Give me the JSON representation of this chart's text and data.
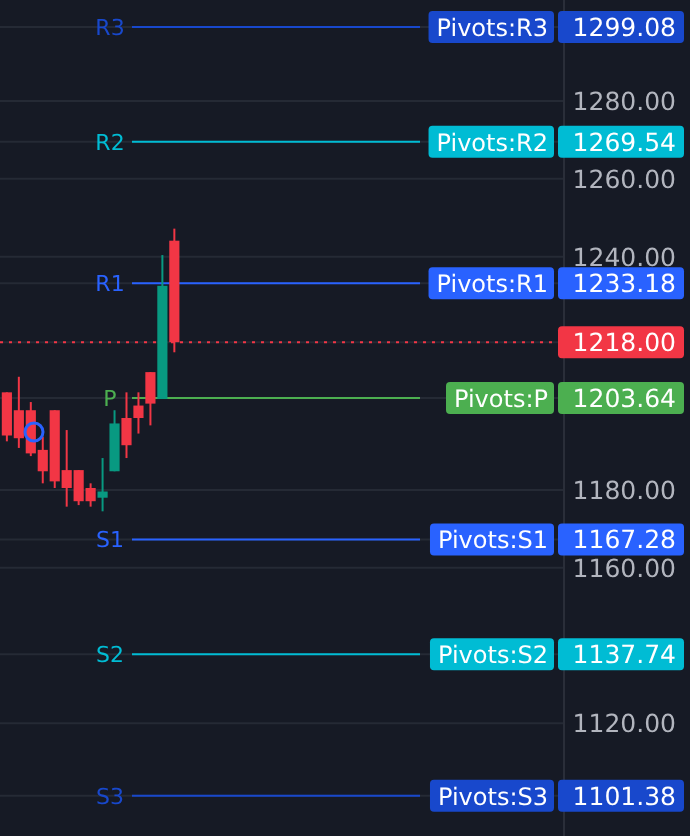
{
  "chart_data": {
    "type": "candlestick",
    "categories": [
      null,
      null,
      null,
      null,
      null,
      null,
      null,
      null,
      null,
      null,
      null,
      null,
      null,
      null,
      null,
      null,
      null,
      null,
      null,
      null,
      null,
      null,
      null,
      null,
      null,
      null,
      null,
      null,
      null,
      null,
      null,
      null,
      null,
      null,
      null,
      null,
      null,
      null,
      null,
      null,
      null,
      null,
      null,
      null,
      null,
      null,
      null
    ],
    "ohlc": [
      [
        1205.1,
        1205.1,
        1192.5,
        1194.0
      ],
      [
        1200.5,
        1209.1,
        1190.8,
        1193.3
      ],
      [
        1200.5,
        1202.6,
        1188.7,
        1189.4
      ],
      [
        1190.3,
        1193.7,
        1181.7,
        1184.8
      ],
      [
        1200.5,
        1200.5,
        1180.5,
        1182.2
      ],
      [
        1185.1,
        1195.4,
        1175.7,
        1180.5
      ],
      [
        1185.1,
        1185.1,
        1176.1,
        1177.1
      ],
      [
        1180.5,
        1181.7,
        1175.7,
        1177.1
      ],
      [
        1178.0,
        1188.2,
        1174.5,
        1179.6
      ],
      [
        1184.8,
        1200.5,
        1184.8,
        1197.1
      ],
      [
        1198.5,
        1205.1,
        1188.2,
        1191.5
      ],
      [
        1201.7,
        1205.1,
        1194.5,
        1198.5
      ],
      [
        1210.3,
        1210.3,
        1196.6,
        1202.2
      ],
      [
        1203.4,
        1240.4,
        1203.4,
        1232.5
      ],
      [
        1244.1,
        1247.2,
        1215.4,
        1218.0
      ],
      null,
      null,
      null,
      null,
      null,
      null,
      null,
      null,
      null,
      null,
      null,
      null,
      null,
      null,
      null,
      null,
      null,
      null,
      null,
      null,
      null,
      null,
      null,
      null,
      null,
      null,
      null,
      null,
      null,
      null,
      null,
      null
    ],
    "ylim": [
      1091,
      1306
    ],
    "yticks": [
      {
        "value": 1101.38,
        "label": "1101.38"
      },
      {
        "value": 1120,
        "label": "1120.00"
      },
      {
        "value": 1137.74,
        "label": "1137.74"
      },
      {
        "value": 1160,
        "label": "1160.00"
      },
      {
        "value": 1167.28,
        "label": "1167.28"
      },
      {
        "value": 1180,
        "label": "1180.00"
      },
      {
        "value": 1203.64,
        "label": "1203.64"
      },
      {
        "value": 1218,
        "label": "1218.00"
      },
      {
        "value": 1233.18,
        "label": "1233.18"
      },
      {
        "value": 1240,
        "label": "1240.00"
      },
      {
        "value": 1260,
        "label": "1260.00"
      },
      {
        "value": 1269.54,
        "label": "1269.54"
      },
      {
        "value": 1280,
        "label": "1280.00"
      },
      {
        "value": 1299.08,
        "label": "1299.08"
      }
    ],
    "grid": "y",
    "ref_lines": [
      {
        "axis": "y",
        "value": 1299.08,
        "label": "R3",
        "color": "#1848cc"
      },
      {
        "axis": "y",
        "value": 1269.54,
        "label": "R2",
        "color": "#00bcd4"
      },
      {
        "axis": "y",
        "value": 1233.18,
        "label": "R1",
        "color": "#2962ff"
      },
      {
        "axis": "y",
        "value": 1218,
        "label": null,
        "color": "#f23645",
        "line_style": "dotted"
      },
      {
        "axis": "y",
        "value": 1203.64,
        "label": "P",
        "color": "#4caf50"
      },
      {
        "axis": "y",
        "value": 1167.28,
        "label": "S1",
        "color": "#2962ff"
      },
      {
        "axis": "y",
        "value": 1137.74,
        "label": "S2",
        "color": "#00bcd4"
      },
      {
        "axis": "y",
        "value": 1101.38,
        "label": "S3",
        "color": "#1848cc"
      }
    ],
    "annotations": [
      "Pivots:R3",
      "Pivots:R2",
      "Pivots:R1",
      "Pivots:P",
      "Pivots:S1",
      "Pivots:S2",
      "Pivots:S3"
    ]
  }
}
